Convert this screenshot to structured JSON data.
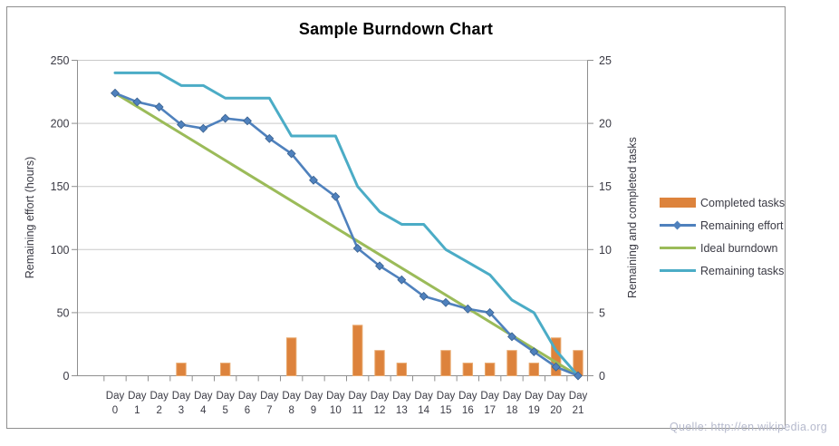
{
  "chart": {
    "title": "Sample Burndown Chart",
    "left_axis_title": "Remaining effort (hours)",
    "right_axis_title": "Remaining and  completed tasks",
    "source_note": "Quelle: http://en.wikipedia.org"
  },
  "chart_data": {
    "type": "combo",
    "title": "Sample Burndown Chart",
    "grid": true,
    "legend_position": "right",
    "categories": [
      "Day 0",
      "Day 1",
      "Day 2",
      "Day 3",
      "Day 4",
      "Day 5",
      "Day 6",
      "Day 7",
      "Day 8",
      "Day 9",
      "Day 10",
      "Day 11",
      "Day 12",
      "Day 13",
      "Day 14",
      "Day 15",
      "Day 16",
      "Day 17",
      "Day 18",
      "Day 19",
      "Day 20",
      "Day 21"
    ],
    "left_axis": {
      "label": "Remaining effort (hours)",
      "min": 0,
      "max": 250,
      "step": 50
    },
    "right_axis": {
      "label": "Remaining and completed tasks",
      "min": 0,
      "max": 25,
      "step": 5
    },
    "series": [
      {
        "name": "Completed tasks",
        "type": "bar",
        "axis": "right",
        "color": "#DD833C",
        "values": [
          0,
          0,
          0,
          1,
          0,
          1,
          0,
          0,
          3,
          0,
          0,
          4,
          2,
          1,
          0,
          2,
          1,
          1,
          2,
          1,
          3,
          2
        ]
      },
      {
        "name": "Remaining effort",
        "type": "line-diamond",
        "axis": "left",
        "color": "#4F81BD",
        "values": [
          224,
          217,
          213,
          199,
          196,
          204,
          202,
          188,
          176,
          155,
          142,
          101,
          87,
          76,
          63,
          58,
          53,
          50,
          31,
          19,
          7,
          0
        ]
      },
      {
        "name": "Ideal burndown",
        "type": "line",
        "axis": "left",
        "color": "#9BBB59",
        "x": [
          0,
          21
        ],
        "values": [
          224,
          0
        ]
      },
      {
        "name": "Remaining tasks",
        "type": "line",
        "axis": "right",
        "color": "#4BACC6",
        "values": [
          24,
          24,
          24,
          23,
          23,
          22,
          22,
          22,
          19,
          19,
          19,
          15,
          13,
          12,
          12,
          10,
          9,
          8,
          6,
          5,
          2,
          0
        ]
      }
    ]
  }
}
